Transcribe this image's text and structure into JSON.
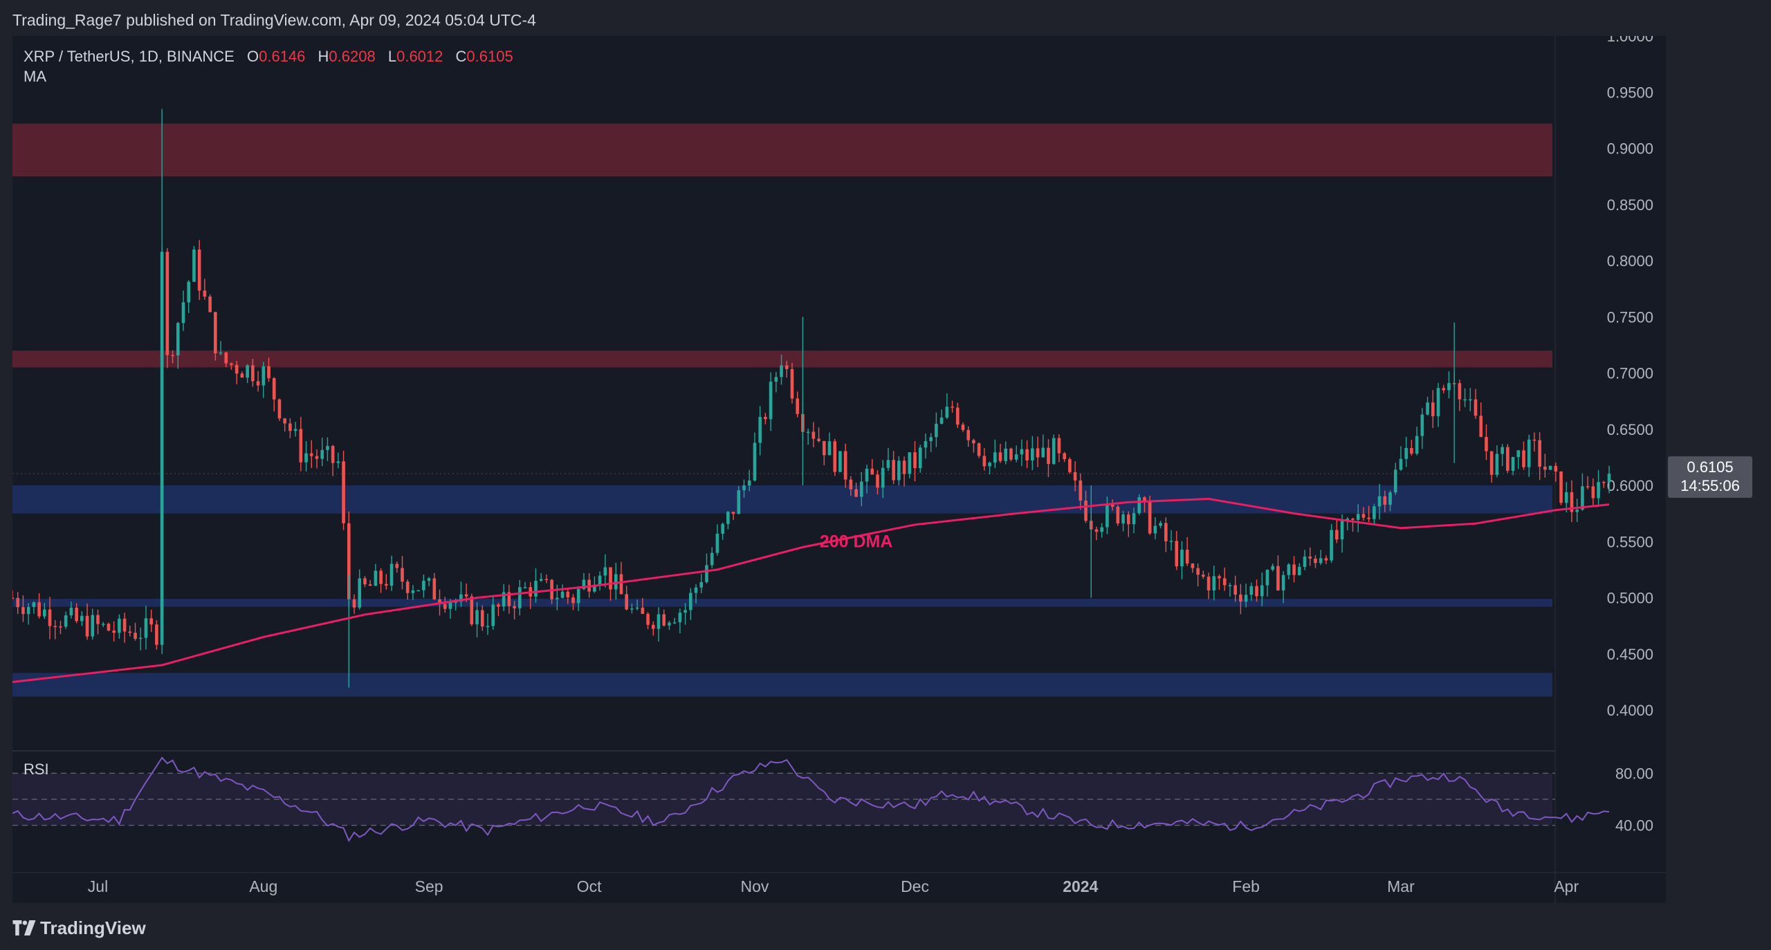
{
  "header": {
    "publisher_line": "Trading_Rage7 published on TradingView.com, Apr 09, 2024 05:04 UTC-4"
  },
  "legend": {
    "symbol": "XRP / TetherUS, 1D, BINANCE",
    "open_label": "O",
    "open_value": "0.6146",
    "high_label": "H",
    "high_value": "0.6208",
    "low_label": "L",
    "low_value": "0.6012",
    "close_label": "C",
    "close_value": "0.6105",
    "indicator": "MA"
  },
  "rsi": {
    "label": "RSI",
    "levels": [
      "80.00",
      "40.00"
    ]
  },
  "price_tag": {
    "price": "0.6105",
    "countdown": "14:55:06"
  },
  "footer": {
    "brand": "TradingView"
  },
  "colors": {
    "background": "#161a25",
    "up": "#26a69a",
    "down": "#ef5350",
    "ma": "#e91e63",
    "rsi_line": "#7e57c2",
    "resistance_zone": "#5c2230",
    "support_zone": "#1e2e5e"
  },
  "chart_data": {
    "type": "candlestick",
    "symbol": "XRP / TetherUS",
    "interval": "1D",
    "exchange": "BINANCE",
    "y_range": [
      0.36,
      1.0
    ],
    "x_ticks": [
      "Jul",
      "Aug",
      "Sep",
      "Oct",
      "Nov",
      "Dec",
      "2024",
      "Feb",
      "Mar",
      "Apr"
    ],
    "y_ticks": [
      "1.0000",
      "0.9500",
      "0.9000",
      "0.8500",
      "0.8000",
      "0.7500",
      "0.7000",
      "0.6500",
      "0.6000",
      "0.5500",
      "0.5000",
      "0.4500",
      "0.4000"
    ],
    "zones": [
      {
        "kind": "resistance",
        "low": 0.875,
        "high": 0.922
      },
      {
        "kind": "resistance",
        "low": 0.705,
        "high": 0.72
      },
      {
        "kind": "support",
        "low": 0.575,
        "high": 0.6
      },
      {
        "kind": "support",
        "low": 0.492,
        "high": 0.499
      },
      {
        "kind": "support",
        "low": 0.412,
        "high": 0.433
      }
    ],
    "annotation": "200 DMA",
    "ma_200": [
      {
        "date": "2023-06-15",
        "value": 0.425
      },
      {
        "date": "2023-07-13",
        "value": 0.44
      },
      {
        "date": "2023-08-01",
        "value": 0.465
      },
      {
        "date": "2023-08-20",
        "value": 0.485
      },
      {
        "date": "2023-09-10",
        "value": 0.5
      },
      {
        "date": "2023-10-01",
        "value": 0.51
      },
      {
        "date": "2023-10-25",
        "value": 0.525
      },
      {
        "date": "2023-11-10",
        "value": 0.545
      },
      {
        "date": "2023-12-01",
        "value": 0.565
      },
      {
        "date": "2023-12-20",
        "value": 0.575
      },
      {
        "date": "2024-01-10",
        "value": 0.585
      },
      {
        "date": "2024-01-25",
        "value": 0.588
      },
      {
        "date": "2024-02-10",
        "value": 0.575
      },
      {
        "date": "2024-03-01",
        "value": 0.562
      },
      {
        "date": "2024-03-15",
        "value": 0.566
      },
      {
        "date": "2024-03-30",
        "value": 0.578
      },
      {
        "date": "2024-04-09",
        "value": 0.583
      }
    ],
    "close_path": [
      {
        "date": "2023-06-15",
        "close": 0.5
      },
      {
        "date": "2023-06-25",
        "close": 0.48
      },
      {
        "date": "2023-07-05",
        "close": 0.47
      },
      {
        "date": "2023-07-12",
        "close": 0.47
      },
      {
        "date": "2023-07-13",
        "close": 0.815
      },
      {
        "date": "2023-07-14",
        "close": 0.71
      },
      {
        "date": "2023-07-19",
        "close": 0.8
      },
      {
        "date": "2023-07-24",
        "close": 0.71
      },
      {
        "date": "2023-08-01",
        "close": 0.7
      },
      {
        "date": "2023-08-08",
        "close": 0.63
      },
      {
        "date": "2023-08-15",
        "close": 0.62
      },
      {
        "date": "2023-08-17",
        "close": 0.5
      },
      {
        "date": "2023-08-25",
        "close": 0.52
      },
      {
        "date": "2023-09-05",
        "close": 0.5
      },
      {
        "date": "2023-09-11",
        "close": 0.48
      },
      {
        "date": "2023-09-20",
        "close": 0.51
      },
      {
        "date": "2023-09-28",
        "close": 0.5
      },
      {
        "date": "2023-10-03",
        "close": 0.53
      },
      {
        "date": "2023-10-10",
        "close": 0.48
      },
      {
        "date": "2023-10-19",
        "close": 0.49
      },
      {
        "date": "2023-10-25",
        "close": 0.55
      },
      {
        "date": "2023-10-30",
        "close": 0.6
      },
      {
        "date": "2023-11-06",
        "close": 0.715
      },
      {
        "date": "2023-11-10",
        "close": 0.66
      },
      {
        "date": "2023-11-20",
        "close": 0.6
      },
      {
        "date": "2023-12-01",
        "close": 0.62
      },
      {
        "date": "2023-12-08",
        "close": 0.67
      },
      {
        "date": "2023-12-15",
        "close": 0.62
      },
      {
        "date": "2023-12-27",
        "close": 0.63
      },
      {
        "date": "2024-01-03",
        "close": 0.57
      },
      {
        "date": "2024-01-12",
        "close": 0.58
      },
      {
        "date": "2024-01-22",
        "close": 0.52
      },
      {
        "date": "2024-02-01",
        "close": 0.505
      },
      {
        "date": "2024-02-12",
        "close": 0.53
      },
      {
        "date": "2024-02-20",
        "close": 0.56
      },
      {
        "date": "2024-02-28",
        "close": 0.6
      },
      {
        "date": "2024-03-04",
        "close": 0.65
      },
      {
        "date": "2024-03-11",
        "close": 0.7
      },
      {
        "date": "2024-03-18",
        "close": 0.62
      },
      {
        "date": "2024-03-26",
        "close": 0.63
      },
      {
        "date": "2024-04-02",
        "close": 0.58
      },
      {
        "date": "2024-04-09",
        "close": 0.6105
      }
    ],
    "rsi": {
      "y_range": [
        25,
        95
      ],
      "levels": [
        80,
        40
      ],
      "path": [
        {
          "date": "2023-06-15",
          "value": 48
        },
        {
          "date": "2023-07-05",
          "value": 44
        },
        {
          "date": "2023-07-13",
          "value": 90
        },
        {
          "date": "2023-07-20",
          "value": 80
        },
        {
          "date": "2023-08-01",
          "value": 65
        },
        {
          "date": "2023-08-10",
          "value": 50
        },
        {
          "date": "2023-08-17",
          "value": 32
        },
        {
          "date": "2023-09-01",
          "value": 44
        },
        {
          "date": "2023-09-12",
          "value": 36
        },
        {
          "date": "2023-10-01",
          "value": 56
        },
        {
          "date": "2023-10-15",
          "value": 42
        },
        {
          "date": "2023-10-28",
          "value": 76
        },
        {
          "date": "2023-11-06",
          "value": 91
        },
        {
          "date": "2023-11-15",
          "value": 60
        },
        {
          "date": "2023-12-01",
          "value": 55
        },
        {
          "date": "2023-12-08",
          "value": 66
        },
        {
          "date": "2024-01-03",
          "value": 40
        },
        {
          "date": "2024-01-20",
          "value": 42
        },
        {
          "date": "2024-02-01",
          "value": 39
        },
        {
          "date": "2024-02-20",
          "value": 60
        },
        {
          "date": "2024-03-01",
          "value": 76
        },
        {
          "date": "2024-03-11",
          "value": 78
        },
        {
          "date": "2024-03-20",
          "value": 52
        },
        {
          "date": "2024-04-02",
          "value": 45
        },
        {
          "date": "2024-04-09",
          "value": 52
        }
      ]
    }
  }
}
